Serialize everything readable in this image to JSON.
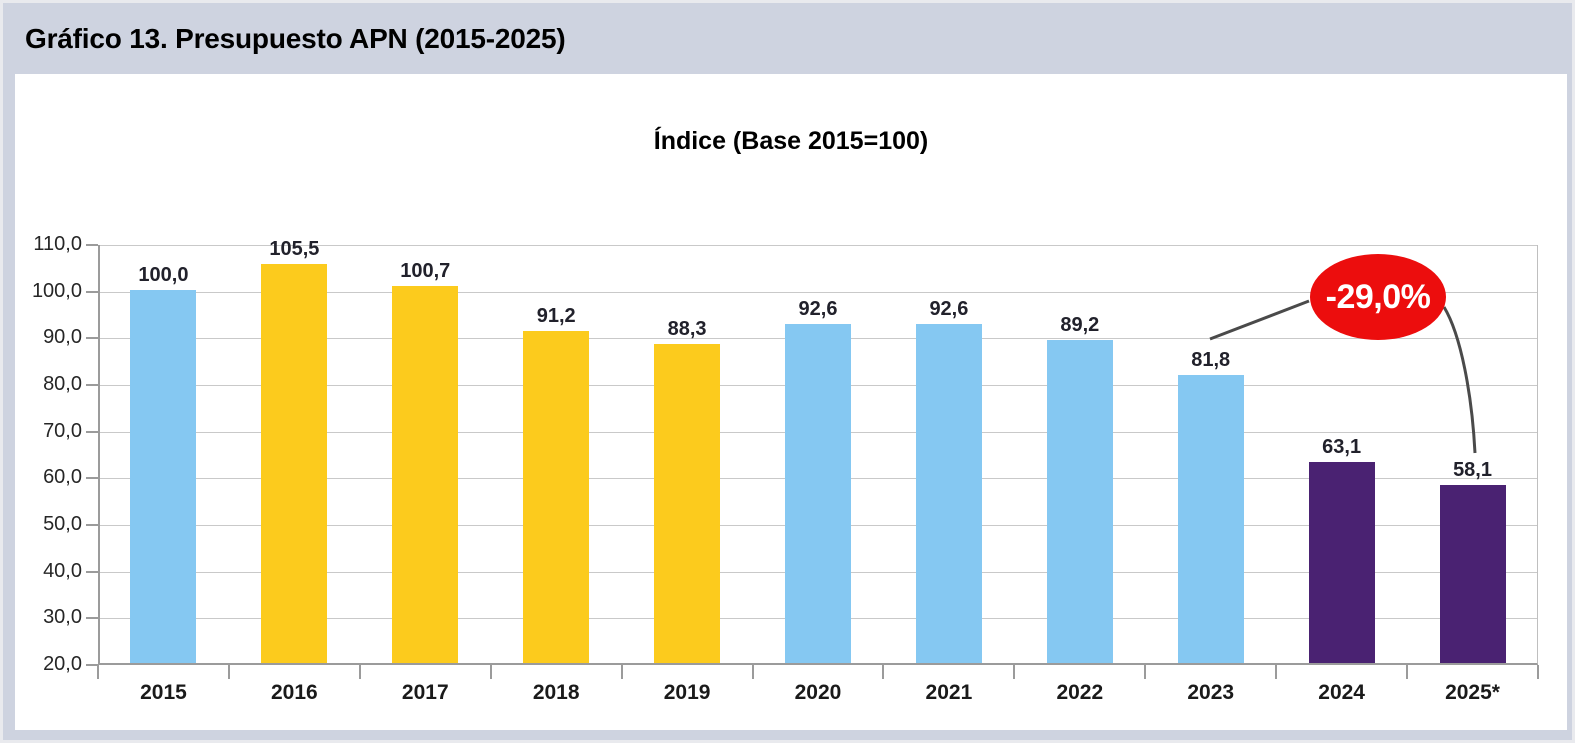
{
  "header": {
    "title": "Gráfico 13. Presupuesto APN (2015-2025)"
  },
  "chart_data": {
    "type": "bar",
    "title": "Índice (Base 2015=100)",
    "categories": [
      "2015",
      "2016",
      "2017",
      "2018",
      "2019",
      "2020",
      "2021",
      "2022",
      "2023",
      "2024",
      "2025*"
    ],
    "values": [
      100.0,
      105.5,
      100.7,
      91.2,
      88.3,
      92.6,
      92.6,
      89.2,
      81.8,
      63.1,
      58.1
    ],
    "value_labels": [
      "100,0",
      "105,5",
      "100,7",
      "91,2",
      "88,3",
      "92,6",
      "92,6",
      "89,2",
      "81,8",
      "63,1",
      "58,1"
    ],
    "bar_colors": [
      "#85C8F2",
      "#FCCB1D",
      "#FCCB1D",
      "#FCCB1D",
      "#FCCB1D",
      "#85C8F2",
      "#85C8F2",
      "#85C8F2",
      "#85C8F2",
      "#4A2272",
      "#4A2272"
    ],
    "ylim": [
      20,
      110
    ],
    "ytick_step": 10,
    "ytick_labels": [
      "110,0",
      "100,0",
      "90,0",
      "80,0",
      "70,0",
      "60,0",
      "50,0",
      "40,0",
      "30,0",
      "20,0"
    ],
    "grid": true,
    "legend": false,
    "annotation": {
      "label": "-29,0%",
      "fill": "#EC0D0D",
      "text_color": "#FFFFFF",
      "points_to": [
        "2023",
        "2025*"
      ]
    }
  },
  "colors": {
    "page_bg": "#CED3E0",
    "panel_bg": "#FFFFFF",
    "grid": "#C9C9C9",
    "axis": "#9B9B9B",
    "connector": "#4A4A4A"
  }
}
